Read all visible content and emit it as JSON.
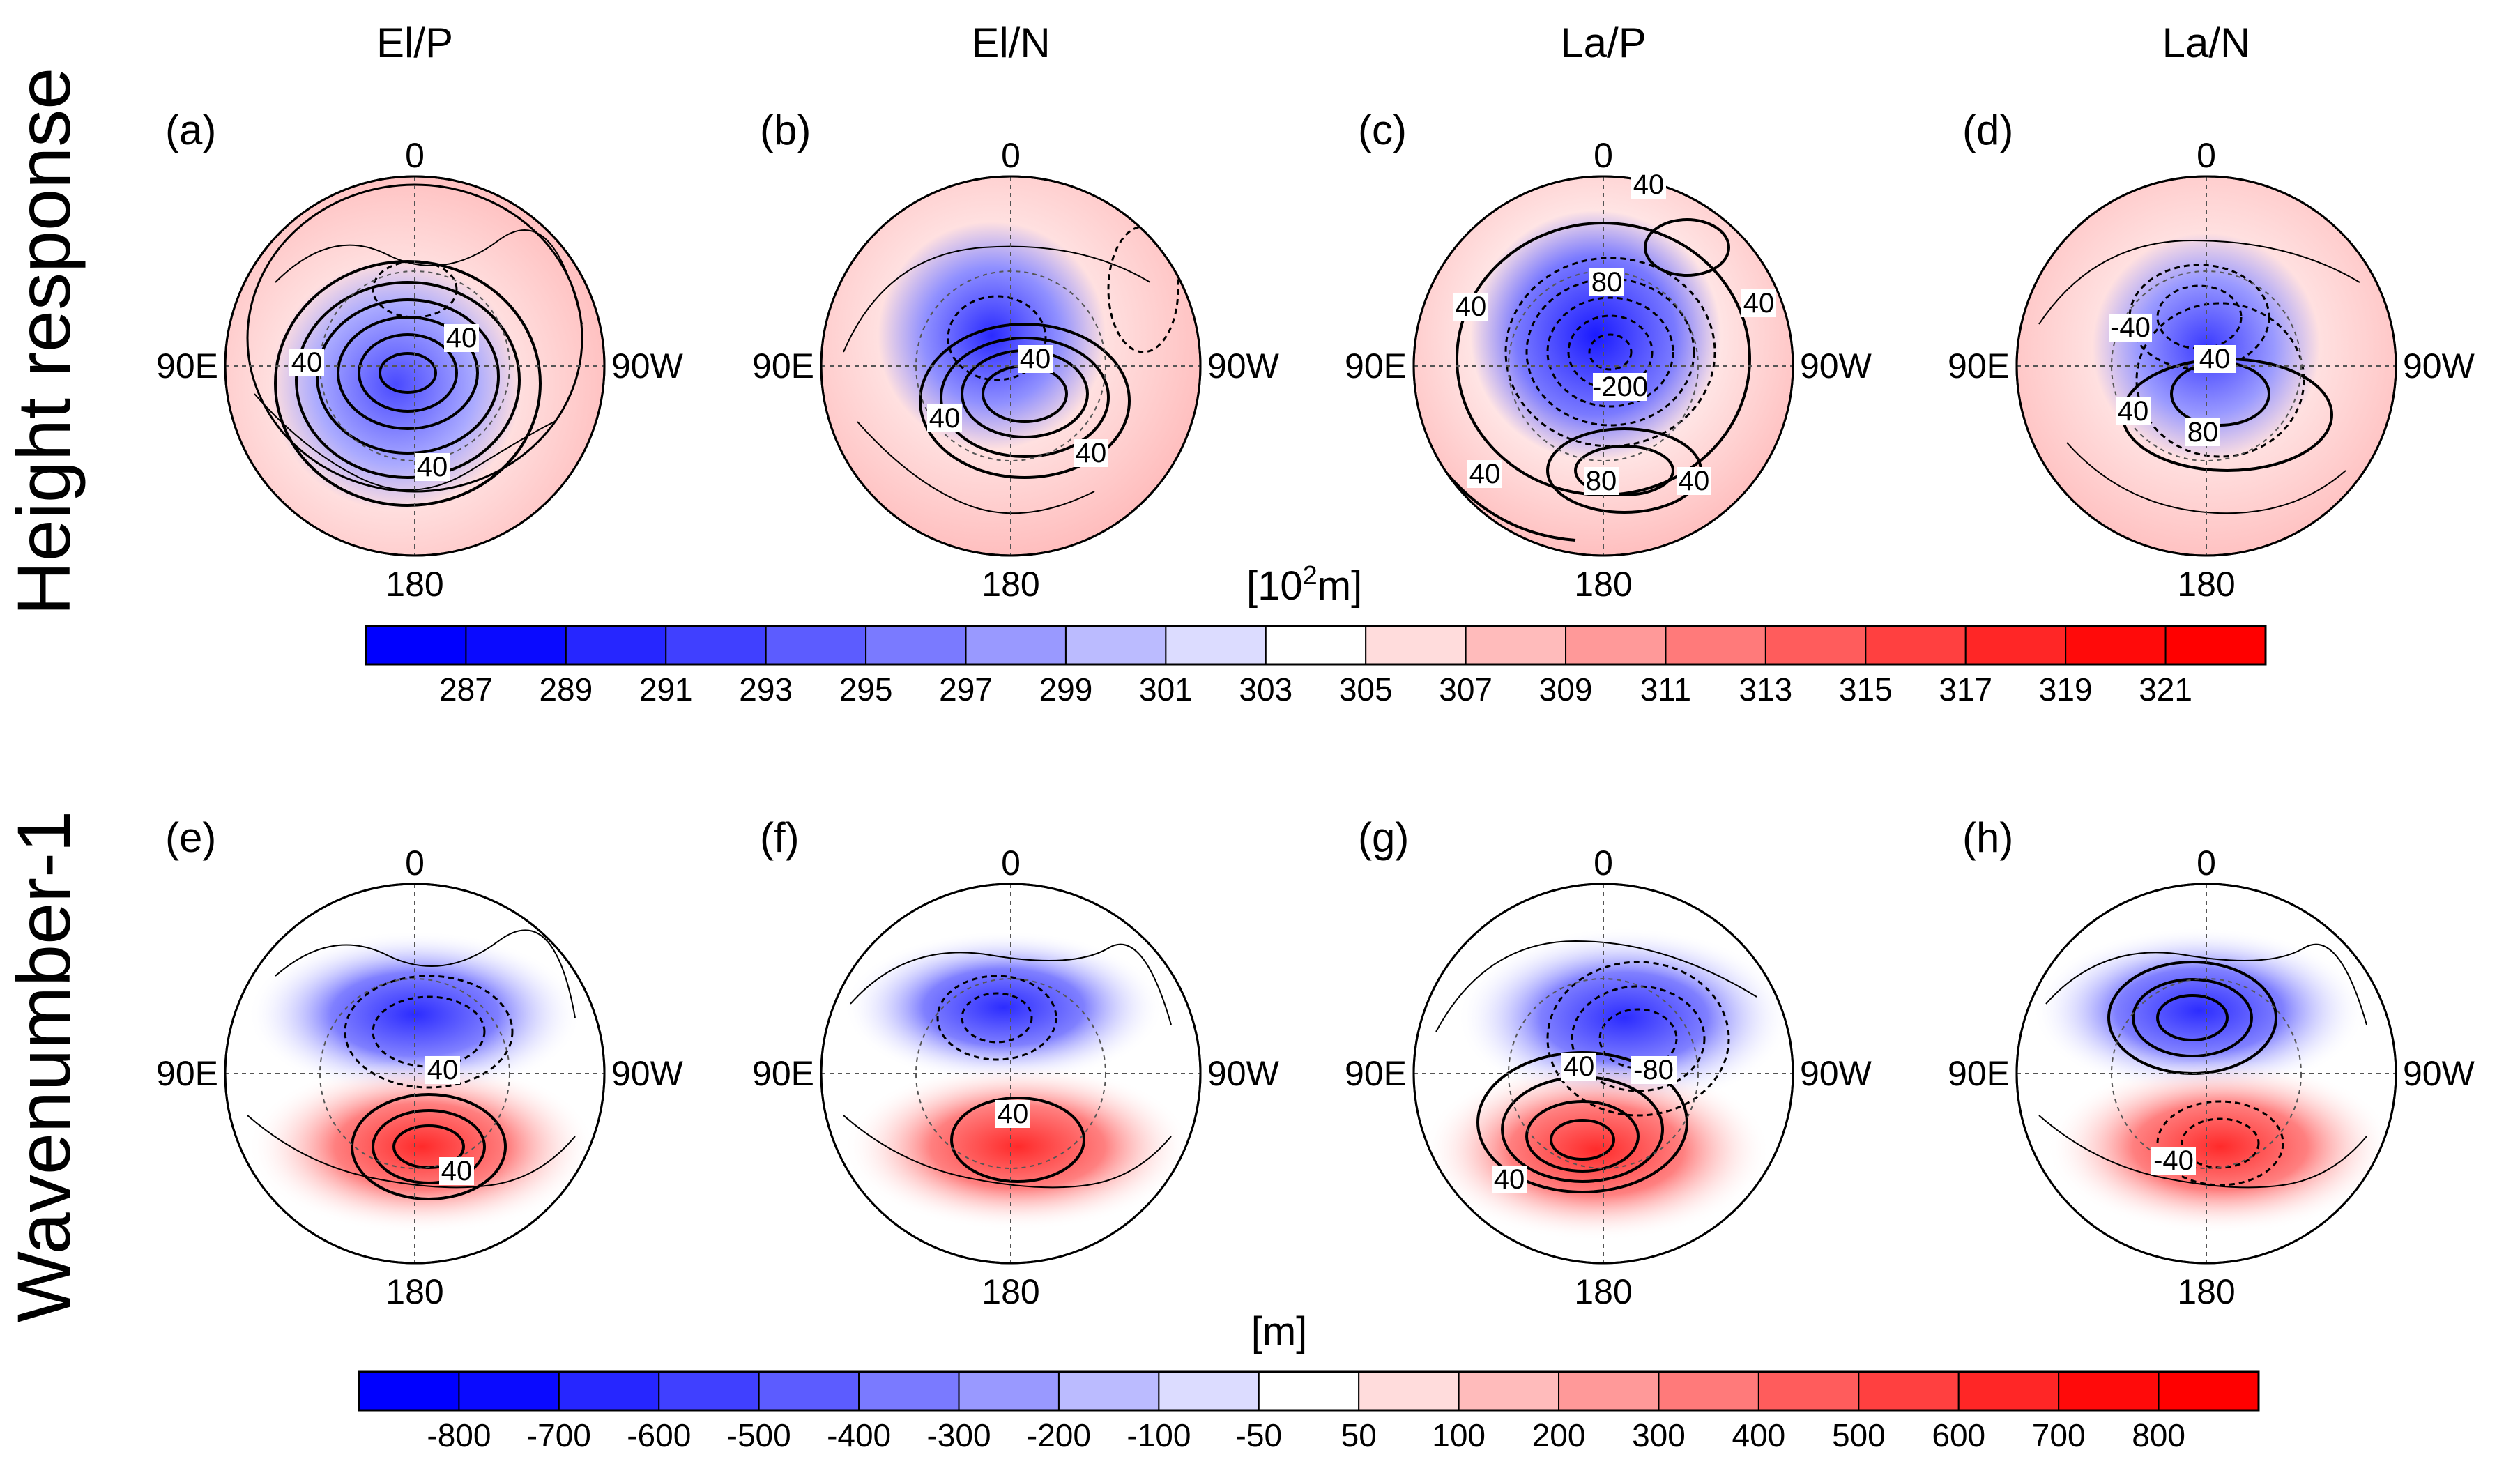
{
  "columns": [
    "El/P",
    "El/N",
    "La/P",
    "La/N"
  ],
  "rows": [
    {
      "title": "Height response",
      "letters": [
        "(a)",
        "(b)",
        "(c)",
        "(d)"
      ]
    },
    {
      "title": "Wavenumber-1",
      "letters": [
        "(e)",
        "(f)",
        "(g)",
        "(h)"
      ]
    }
  ],
  "axis_labels": {
    "top": "0",
    "left": "90E",
    "right": "90W",
    "bottom": "180"
  },
  "contour_labels": [
    [
      "40",
      "40",
      "40"
    ],
    [
      "40",
      "40",
      "40"
    ],
    [
      "40",
      "80",
      "-200",
      "40",
      "40",
      "80",
      "40",
      "40"
    ],
    [
      "-40",
      "40",
      "40",
      "80"
    ],
    [
      "40",
      "40"
    ],
    [
      "40"
    ],
    [
      "40",
      "-80",
      "40"
    ],
    [
      "-40"
    ]
  ],
  "colorbars": [
    {
      "unit_base": "[10",
      "unit_sup": "2",
      "unit_tail": "m]",
      "ticks": [
        "287",
        "289",
        "291",
        "293",
        "295",
        "297",
        "299",
        "301",
        "303",
        "305",
        "307",
        "309",
        "311",
        "313",
        "315",
        "317",
        "319",
        "321"
      ],
      "colors": [
        "#0000ff",
        "#0a0aff",
        "#2626ff",
        "#4040ff",
        "#5c5cff",
        "#7a7aff",
        "#9999ff",
        "#bbbbff",
        "#dcdcff",
        "#ffffff",
        "#ffdcdc",
        "#ffbbbb",
        "#ff9999",
        "#ff7a7a",
        "#ff5c5c",
        "#ff4040",
        "#ff2626",
        "#ff0a0a",
        "#ff0000"
      ]
    },
    {
      "unit_base": "[m]",
      "unit_sup": "",
      "unit_tail": "",
      "ticks": [
        "-800",
        "-700",
        "-600",
        "-500",
        "-400",
        "-300",
        "-200",
        "-100",
        "-50",
        "50",
        "100",
        "200",
        "300",
        "400",
        "500",
        "600",
        "700",
        "800"
      ],
      "colors": [
        "#0000ff",
        "#0a0aff",
        "#2626ff",
        "#4040ff",
        "#5c5cff",
        "#7a7aff",
        "#9999ff",
        "#bbbbff",
        "#dcdcff",
        "#ffffff",
        "#ffdcdc",
        "#ffbbbb",
        "#ff9999",
        "#ff7a7a",
        "#ff5c5c",
        "#ff4040",
        "#ff2626",
        "#ff0a0a",
        "#ff0000"
      ]
    }
  ]
}
